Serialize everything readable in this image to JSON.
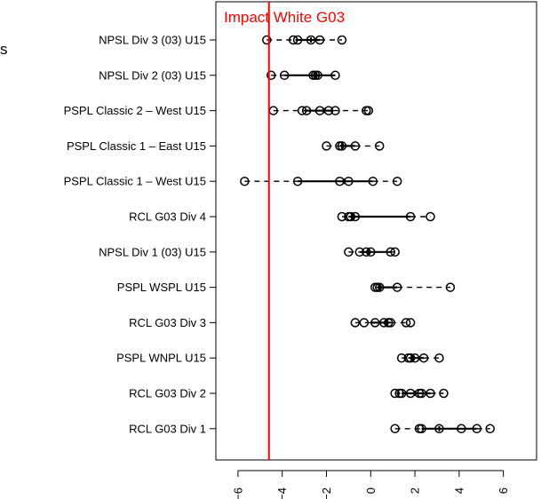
{
  "chart_data": {
    "type": "box",
    "orientation": "horizontal",
    "title": "",
    "xlabel": "",
    "ylabel": "",
    "xlim": [
      -7,
      7.5
    ],
    "xticks": [
      -6,
      -4,
      -2,
      0,
      2,
      4,
      6
    ],
    "reference_line": {
      "value": -4.6,
      "label": "Impact White G03",
      "color": "#ff0000"
    },
    "cut_off_text": "s",
    "categories": [
      {
        "name": "NPSL Div 3 (03) U15",
        "points": [
          -4.7,
          -3.5,
          -3.3,
          -2.7,
          -2.3,
          -1.3
        ],
        "q1": -3.4,
        "median": -2.7,
        "q3": -2.3,
        "whisker_low": -4.7,
        "whisker_high": -1.3
      },
      {
        "name": "NPSL Div 2 (03) U15",
        "points": [
          -4.5,
          -3.9,
          -2.6,
          -2.5,
          -2.4,
          -1.6
        ],
        "q1": -3.9,
        "median": -2.5,
        "q3": -1.6,
        "whisker_low": -4.5,
        "whisker_high": -1.6
      },
      {
        "name": "PSPL Classic 2 – West U15",
        "points": [
          -4.4,
          -3.1,
          -2.9,
          -2.3,
          -1.9,
          -1.6,
          -0.2,
          -0.1
        ],
        "q1": -3.0,
        "median": -2.1,
        "q3": -1.7,
        "whisker_low": -4.4,
        "whisker_high": -0.1
      },
      {
        "name": "PSPL Classic 1 – East U15",
        "points": [
          -2.0,
          -1.4,
          -1.3,
          -0.7,
          0.4
        ],
        "q1": -1.4,
        "median": -1.3,
        "q3": -0.7,
        "whisker_low": -2.0,
        "whisker_high": 0.4
      },
      {
        "name": "PSPL Classic 1 – West U15",
        "points": [
          -5.7,
          -3.3,
          -1.4,
          -1.0,
          0.1,
          1.2
        ],
        "q1": -3.3,
        "median": -1.2,
        "q3": 0.1,
        "whisker_low": -5.7,
        "whisker_high": 1.2
      },
      {
        "name": "RCL G03 Div 4",
        "points": [
          -1.3,
          -1.0,
          -0.9,
          -0.7,
          1.8,
          2.7
        ],
        "q1": -1.0,
        "median": -0.8,
        "q3": 1.8,
        "whisker_low": -1.3,
        "whisker_high": 2.7
      },
      {
        "name": "NPSL Div 1 (03) U15",
        "points": [
          -1.0,
          -0.5,
          -0.2,
          0.0,
          0.9,
          1.1
        ],
        "q1": -0.5,
        "median": -0.1,
        "q3": 0.9,
        "whisker_low": -1.0,
        "whisker_high": 1.1
      },
      {
        "name": "PSPL WSPL U15",
        "points": [
          0.2,
          0.3,
          0.4,
          1.2,
          3.6
        ],
        "q1": 0.3,
        "median": 0.4,
        "q3": 1.2,
        "whisker_low": 0.2,
        "whisker_high": 3.6
      },
      {
        "name": "RCL G03 Div 3",
        "points": [
          -0.7,
          -0.3,
          0.2,
          0.6,
          0.8,
          0.9,
          1.6,
          1.8
        ],
        "q1": 0.0,
        "median": 0.7,
        "q3": 0.9,
        "whisker_low": -0.7,
        "whisker_high": 1.8
      },
      {
        "name": "PSPL WNPL U15",
        "points": [
          1.4,
          1.7,
          1.8,
          2.0,
          2.4,
          3.1
        ],
        "q1": 1.7,
        "median": 1.9,
        "q3": 2.4,
        "whisker_low": 1.4,
        "whisker_high": 3.1
      },
      {
        "name": "RCL G03 Div 2",
        "points": [
          1.1,
          1.3,
          1.4,
          1.8,
          2.2,
          2.3,
          2.7,
          3.3
        ],
        "q1": 1.4,
        "median": 2.0,
        "q3": 2.7,
        "whisker_low": 1.1,
        "whisker_high": 3.3
      },
      {
        "name": "RCL G03 Div 1",
        "points": [
          1.1,
          2.2,
          2.3,
          3.1,
          4.1,
          4.8,
          5.4
        ],
        "q1": 2.3,
        "median": 3.1,
        "q3": 4.8,
        "whisker_low": 1.1,
        "whisker_high": 5.4
      }
    ]
  }
}
